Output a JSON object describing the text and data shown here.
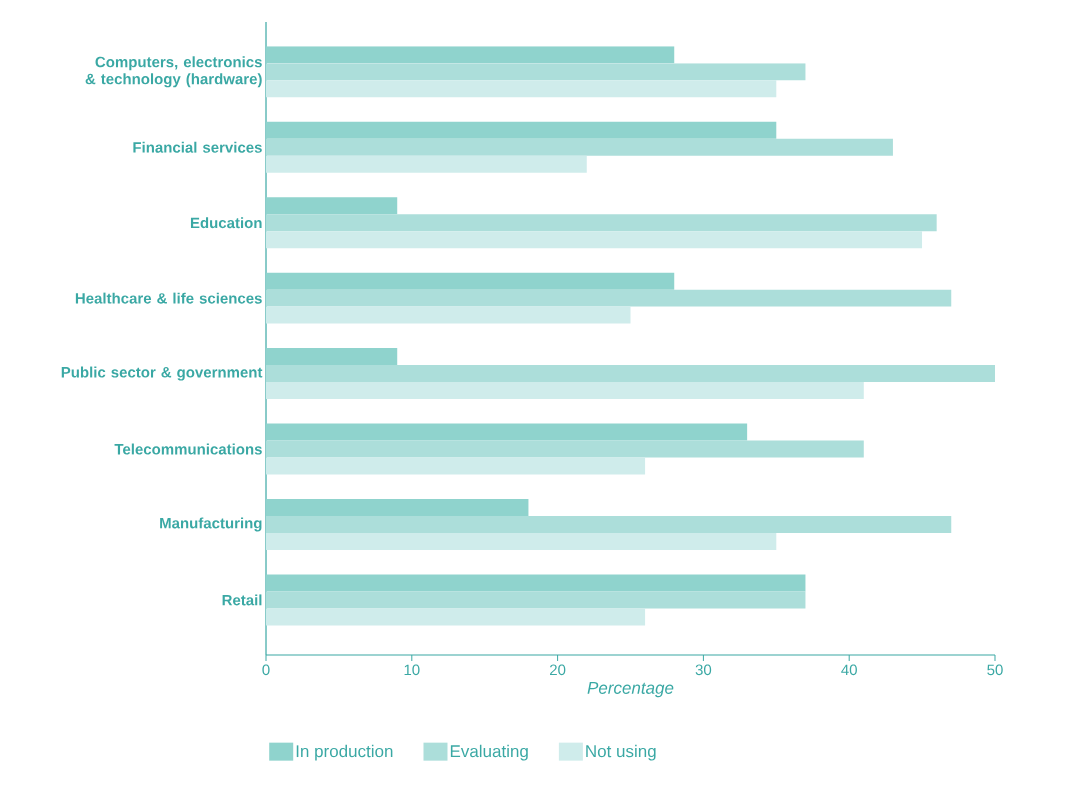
{
  "chart_data": {
    "type": "bar",
    "orientation": "horizontal",
    "xlabel": "Percentage",
    "categories": [
      "Computers, electronics & technology (hardware)",
      "Financial services",
      "Education",
      "Healthcare & life sciences",
      "Public sector & government",
      "Telecommunications",
      "Manufacturing",
      "Retail"
    ],
    "series": [
      {
        "name": "In production",
        "color": "#8fd3cd",
        "values": [
          28,
          35,
          9,
          28,
          9,
          33,
          18,
          37
        ]
      },
      {
        "name": "Evaluating",
        "color": "#acdeda",
        "values": [
          37,
          43,
          46,
          47,
          50,
          41,
          47,
          37
        ]
      },
      {
        "name": "Not using",
        "color": "#cfeceb",
        "values": [
          35,
          22,
          45,
          25,
          41,
          26,
          35,
          26
        ]
      }
    ],
    "xlim": [
      0,
      50
    ],
    "xticks": [
      0,
      10,
      20,
      30,
      40,
      50
    ],
    "grid": false,
    "legend": "bottom"
  }
}
